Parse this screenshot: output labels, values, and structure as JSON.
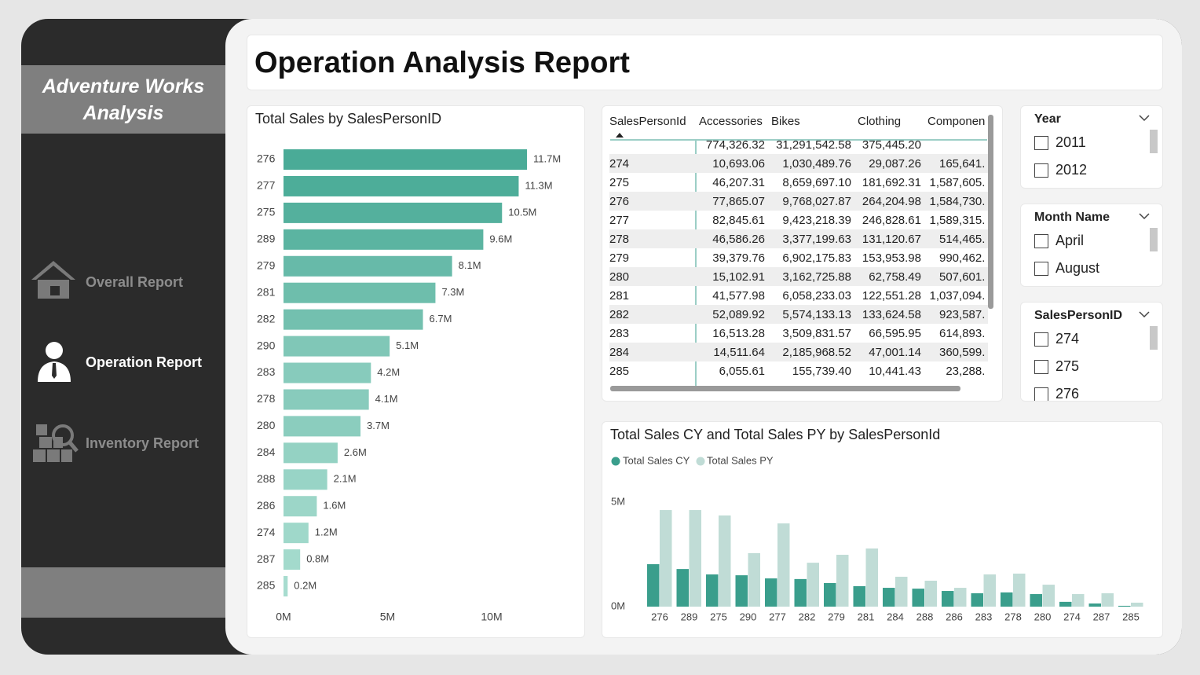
{
  "sidebar": {
    "title": "Adventure Works Analysis",
    "nav": [
      "Overall Report",
      "Operation Report",
      "Inventory Report"
    ]
  },
  "header": {
    "title": "Operation Analysis Report"
  },
  "bar_chart": {
    "type": "bar",
    "title": "Total Sales by SalesPersonID",
    "categories": [
      "276",
      "277",
      "275",
      "289",
      "279",
      "281",
      "282",
      "290",
      "283",
      "278",
      "280",
      "284",
      "288",
      "286",
      "274",
      "287",
      "285"
    ],
    "values": [
      11.7,
      11.3,
      10.5,
      9.6,
      8.1,
      7.3,
      6.7,
      5.1,
      4.2,
      4.1,
      3.7,
      2.6,
      2.1,
      1.6,
      1.2,
      0.8,
      0.2
    ],
    "value_labels": [
      "11.7M",
      "11.3M",
      "10.5M",
      "9.6M",
      "8.1M",
      "7.3M",
      "6.7M",
      "5.1M",
      "4.2M",
      "4.1M",
      "3.7M",
      "2.6M",
      "2.1M",
      "1.6M",
      "1.2M",
      "0.8M",
      "0.2M"
    ],
    "color_max": "#4aab97",
    "color_min": "#a9ddd0",
    "xlim": [
      0,
      14
    ],
    "xticks": [
      {
        "value": 0,
        "label": "0M"
      },
      {
        "value": 5,
        "label": "5M"
      },
      {
        "value": 10,
        "label": "10M"
      }
    ]
  },
  "table": {
    "columns": [
      "SalesPersonId",
      "Accessories",
      "Bikes",
      "Clothing",
      "Componen"
    ],
    "rows": [
      [
        null,
        "774,326.32",
        "31,291,542.58",
        "375,445.20",
        null
      ],
      [
        "274",
        "10,693.06",
        "1,030,489.76",
        "29,087.26",
        "165,641."
      ],
      [
        "275",
        "46,207.31",
        "8,659,697.10",
        "181,692.31",
        "1,587,605."
      ],
      [
        "276",
        "77,865.07",
        "9,768,027.87",
        "264,204.98",
        "1,584,730."
      ],
      [
        "277",
        "82,845.61",
        "9,423,218.39",
        "246,828.61",
        "1,589,315."
      ],
      [
        "278",
        "46,586.26",
        "3,377,199.63",
        "131,120.67",
        "514,465."
      ],
      [
        "279",
        "39,379.76",
        "6,902,175.83",
        "153,953.98",
        "990,462."
      ],
      [
        "280",
        "15,102.91",
        "3,162,725.88",
        "62,758.49",
        "507,601."
      ],
      [
        "281",
        "41,577.98",
        "6,058,233.03",
        "122,551.28",
        "1,037,094."
      ],
      [
        "282",
        "52,089.92",
        "5,574,133.13",
        "133,624.58",
        "923,587."
      ],
      [
        "283",
        "16,513.28",
        "3,509,831.57",
        "66,595.95",
        "614,893."
      ],
      [
        "284",
        "14,511.64",
        "2,185,968.52",
        "47,001.14",
        "360,599."
      ],
      [
        "285",
        "6,055.61",
        "155,739.40",
        "10,441.43",
        "23,288."
      ]
    ]
  },
  "slicers": [
    {
      "title": "Year",
      "items": [
        "2011",
        "2012"
      ]
    },
    {
      "title": "Month Name",
      "items": [
        "April",
        "August"
      ]
    },
    {
      "title": "SalesPersonID",
      "items": [
        "274",
        "275",
        "276"
      ]
    }
  ],
  "column_chart": {
    "type": "bar",
    "title": "Total Sales CY and Total Sales PY by SalesPersonId",
    "categories": [
      "276",
      "289",
      "275",
      "290",
      "277",
      "282",
      "279",
      "281",
      "284",
      "288",
      "286",
      "283",
      "278",
      "280",
      "274",
      "287",
      "285"
    ],
    "series": [
      {
        "name": "Total Sales CY",
        "color": "#3a9e8c",
        "values": [
          2.03,
          1.8,
          1.54,
          1.5,
          1.35,
          1.32,
          1.13,
          0.98,
          0.9,
          0.86,
          0.75,
          0.64,
          0.68,
          0.6,
          0.23,
          0.15,
          0.04
        ]
      },
      {
        "name": "Total Sales PY",
        "color": "#c0dcd6",
        "values": [
          4.62,
          4.62,
          4.36,
          2.56,
          3.98,
          2.1,
          2.48,
          2.78,
          1.43,
          1.24,
          0.9,
          1.54,
          1.58,
          1.05,
          0.6,
          0.64,
          0.19
        ]
      }
    ],
    "ylim": [
      0,
      5.1
    ],
    "yticks": [
      {
        "value": 0,
        "label": "0M"
      },
      {
        "value": 5,
        "label": "5M"
      }
    ]
  }
}
